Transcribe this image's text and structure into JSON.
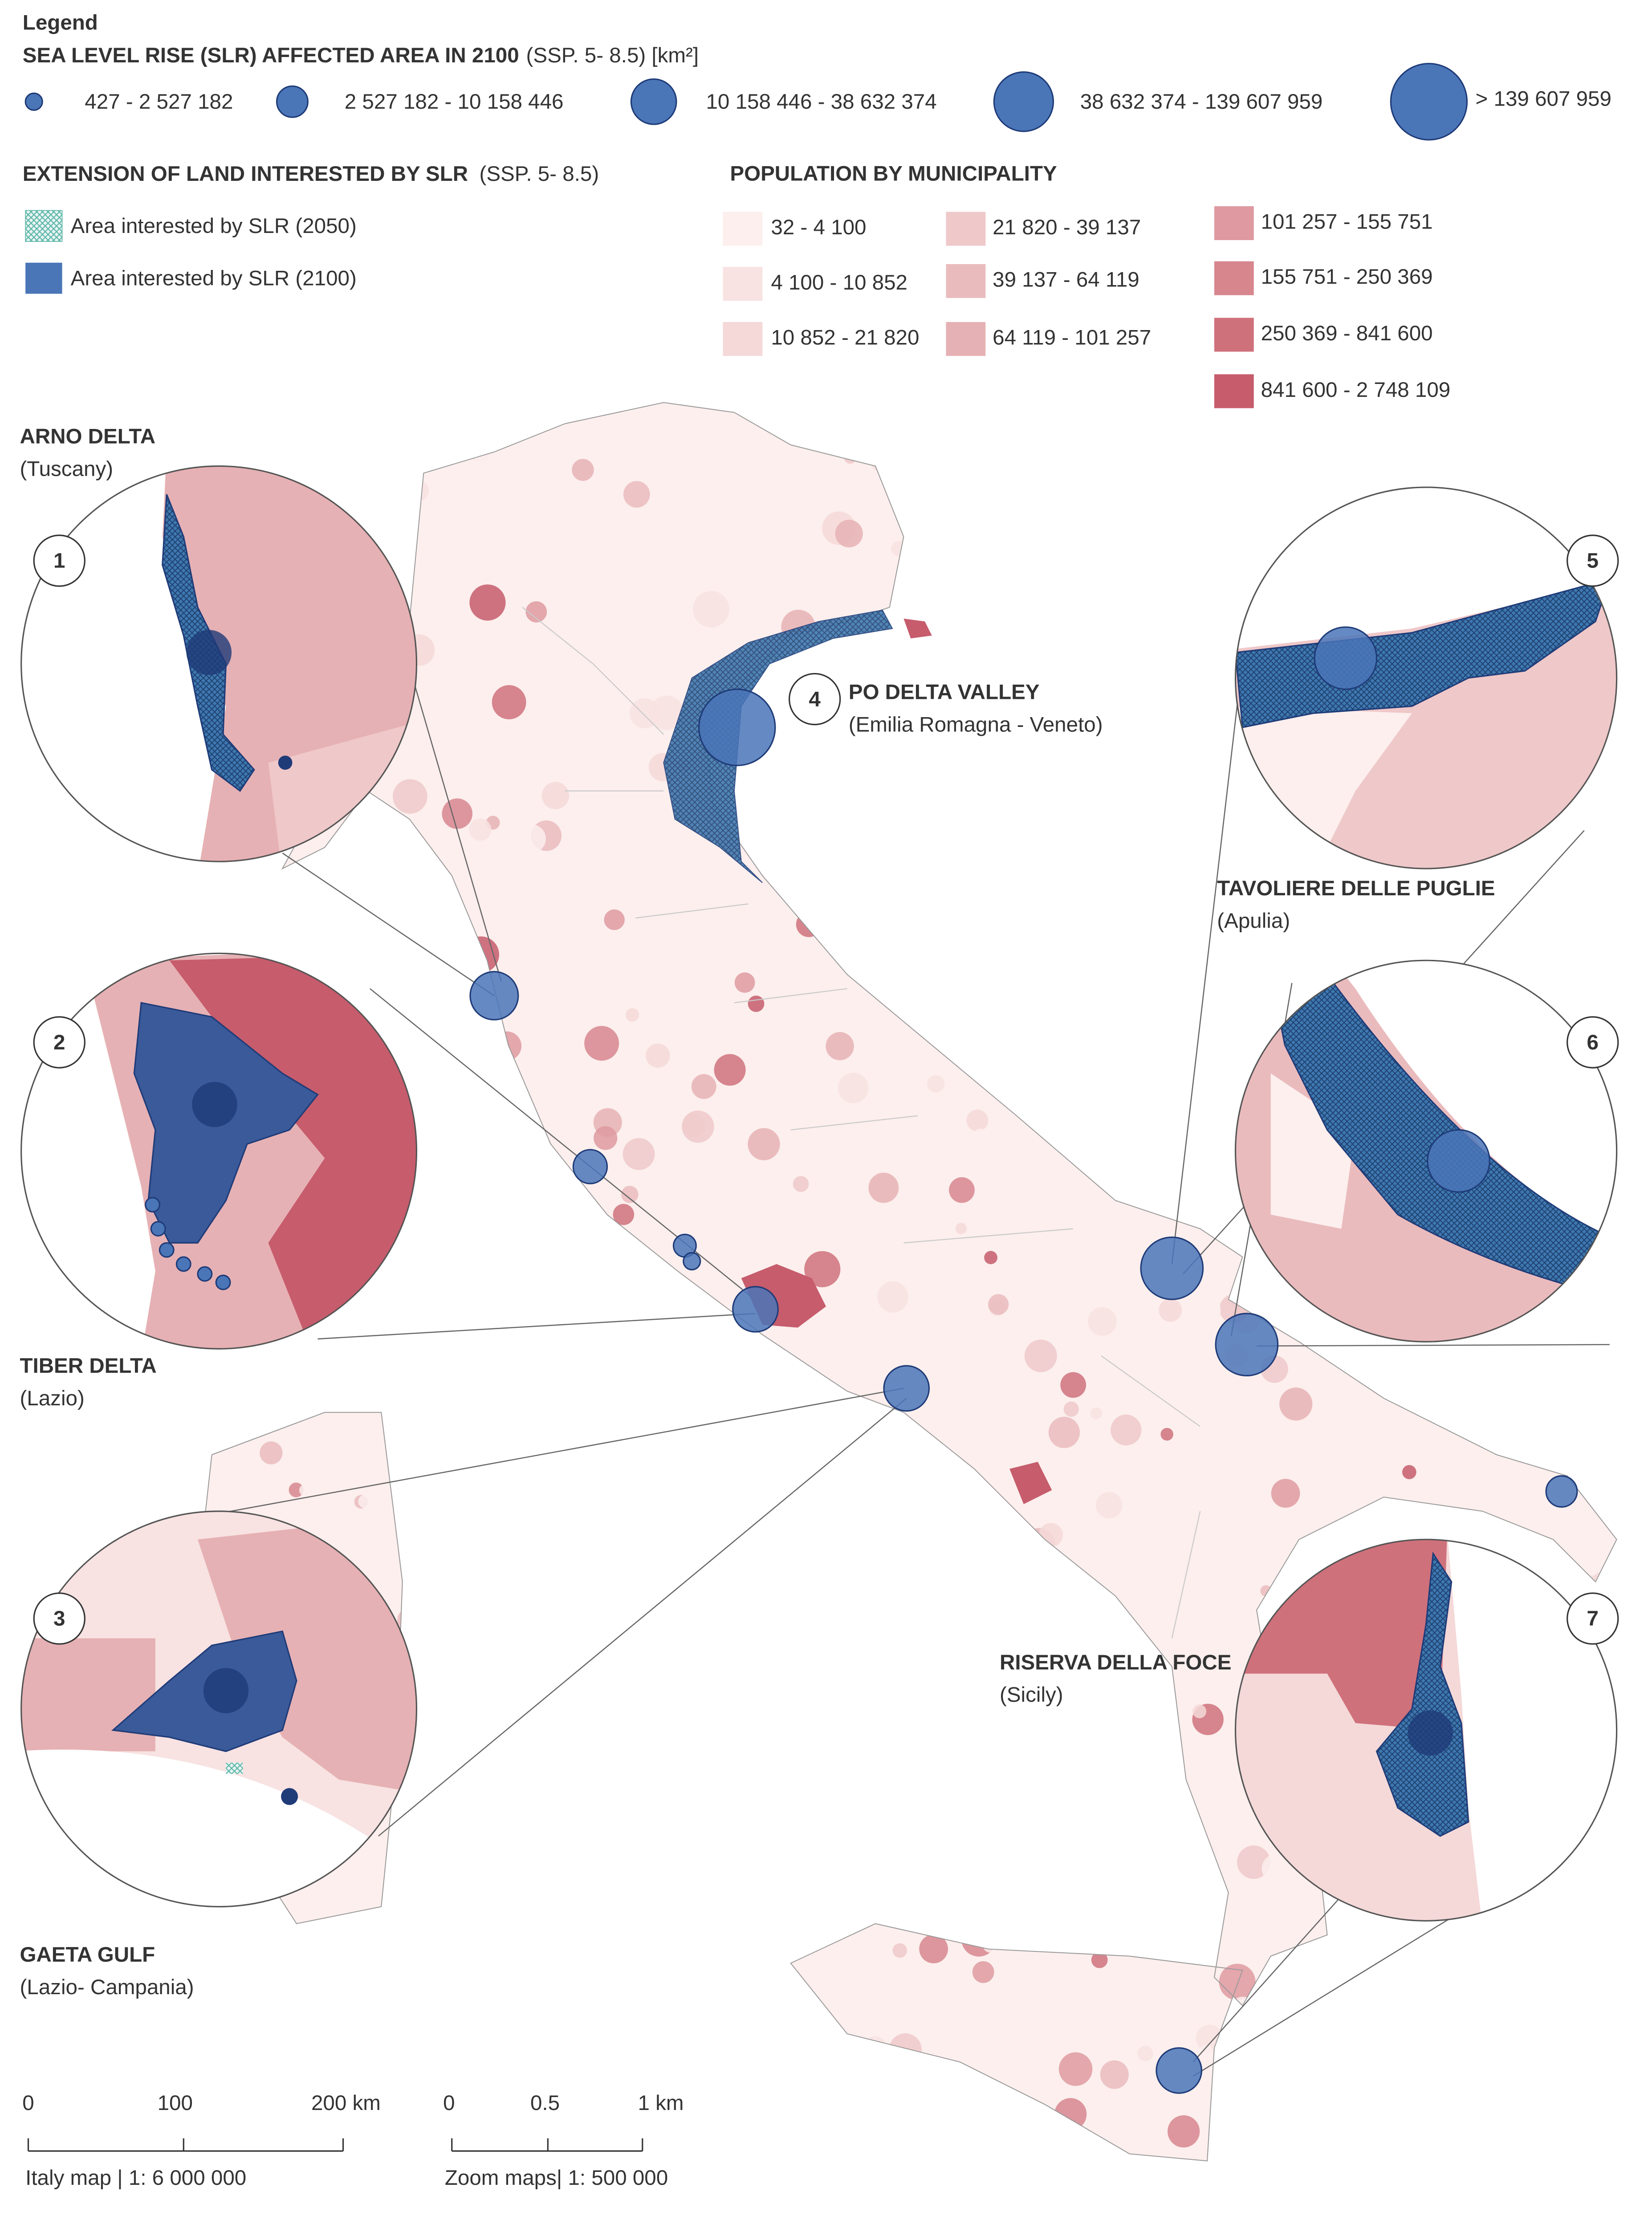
{
  "legend": {
    "title": "Legend",
    "slr": {
      "title": "SEA LEVEL RISE (SLR) AFFECTED AREA IN 2100",
      "subtitle": "(SSP. 5- 8.5) [km²]",
      "classes": [
        "427 - 2 527 182",
        "2 527 182 - 10 158 446",
        "10 158 446 - 38 632 374",
        "38 632 374 - 139 607 959",
        "> 139 607 959"
      ]
    },
    "extension": {
      "title": "EXTENSION OF LAND INTERESTED BY SLR",
      "subtitle": "(SSP. 5- 8.5)",
      "items": [
        "Area interested by SLR (2050)",
        "Area interested by SLR (2100)"
      ]
    },
    "population": {
      "title": "POPULATION BY MUNICIPALITY",
      "classes": [
        {
          "label": "32 - 4 100",
          "color": "#fcefed"
        },
        {
          "label": "4 100 - 10 852",
          "color": "#f8e2e2"
        },
        {
          "label": "10 852 - 21 820",
          "color": "#f4d9d8"
        },
        {
          "label": "21 820 - 39 137",
          "color": "#efc8c9"
        },
        {
          "label": "39 137 - 64 119",
          "color": "#eabbbd"
        },
        {
          "label": "64 119 - 101 257",
          "color": "#e6b1b4"
        },
        {
          "label": "101 257 - 155 751",
          "color": "#de9aa0"
        },
        {
          "label": "155 751 - 250 369",
          "color": "#d7868e"
        },
        {
          "label": "250 369 - 841 600",
          "color": "#cf717b"
        },
        {
          "label": "841 600 - 2 748 109",
          "color": "#c65c6c"
        }
      ]
    }
  },
  "zooms": [
    {
      "number": "1",
      "title": "ARNO DELTA",
      "region": "(Tuscany)"
    },
    {
      "number": "2",
      "title": "TIBER DELTA",
      "region": "(Lazio)"
    },
    {
      "number": "3",
      "title": "GAETA GULF",
      "region": "(Lazio- Campania)"
    },
    {
      "number": "4",
      "title": "PO DELTA VALLEY",
      "region": "(Emilia Romagna - Veneto)"
    },
    {
      "number": "5",
      "title": "TAVOLIERE DELLE PUGLIE",
      "region": "(Apulia)"
    },
    {
      "number": "6"
    },
    {
      "number": "7",
      "title": "RISERVA DELLA FOCE",
      "region": "(Sicily)"
    }
  ],
  "scale_bars": [
    {
      "ticks": [
        "0",
        "100",
        "200 km"
      ],
      "caption": "Italy map | 1: 6 000 000"
    },
    {
      "ticks": [
        "0",
        "0.5",
        "1 km"
      ],
      "caption": "Zoom maps| 1: 500 000"
    }
  ]
}
